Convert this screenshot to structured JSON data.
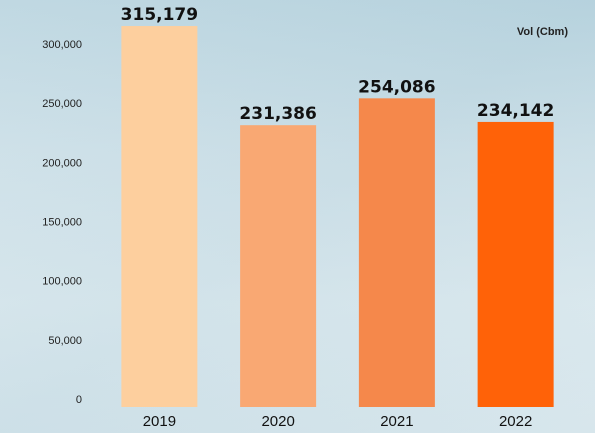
{
  "chart_data": {
    "type": "bar",
    "categories": [
      "2019",
      "2020",
      "2021",
      "2022"
    ],
    "values": [
      315179,
      231386,
      254086,
      234142
    ],
    "value_labels": [
      "315,179",
      "231,386",
      "254,086",
      "234,142"
    ],
    "bar_colors": [
      "#fdcf9e",
      "#f9a873",
      "#f5884b",
      "#ff6208"
    ],
    "ylim": [
      0,
      300000
    ],
    "yticks": [
      0,
      50000,
      100000,
      150000,
      200000,
      250000,
      300000
    ],
    "ytick_labels": [
      "0",
      "50,000",
      "100,000",
      "150,000",
      "200,000",
      "250,000",
      "300,000"
    ],
    "unit_label": "Vol (Cbm)",
    "grid": false,
    "legend": "none"
  }
}
